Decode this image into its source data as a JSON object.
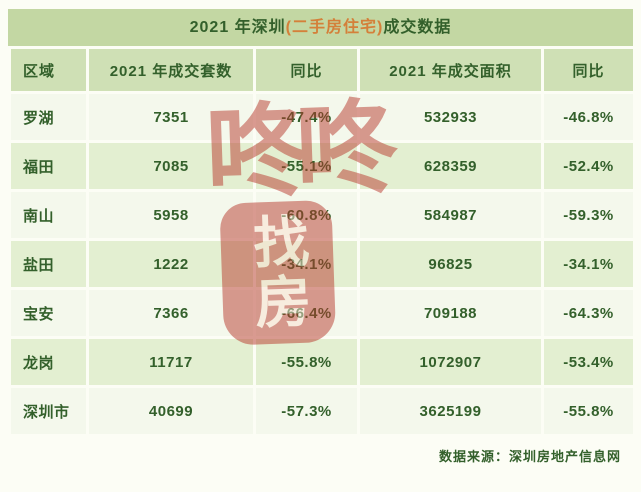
{
  "title": {
    "prefix": "2021 年深圳",
    "highlight": "(二手房住宅)",
    "suffix": "成交数据"
  },
  "chart_data": {
    "type": "table",
    "title": "2021 年深圳(二手房住宅)成交数据",
    "columns": [
      "区域",
      "2021 年成交套数",
      "同比",
      "2021 年成交面积",
      "同比"
    ],
    "rows": [
      [
        "罗湖",
        7351,
        "-47.4%",
        532933,
        "-46.8%"
      ],
      [
        "福田",
        7085,
        "-55.1%",
        628359,
        "-52.4%"
      ],
      [
        "南山",
        5958,
        "-60.8%",
        584987,
        "-59.3%"
      ],
      [
        "盐田",
        1222,
        "-34.1%",
        96825,
        "-34.1%"
      ],
      [
        "宝安",
        7366,
        "-66.4%",
        709188,
        "-64.3%"
      ],
      [
        "龙岗",
        11717,
        "-55.8%",
        1072907,
        "-53.4%"
      ],
      [
        "深圳市",
        40699,
        "-57.3%",
        3625199,
        "-55.8%"
      ]
    ]
  },
  "watermark": {
    "line1": "咚咚",
    "line2": "找房"
  },
  "footer": {
    "source": "数据来源：深圳房地产信息网"
  },
  "colors": {
    "title_bg": "#c3d7a3",
    "header_bg": "#cfe0b5",
    "row_light": "#f4f8ec",
    "row_dark": "#e3efd1",
    "text": "#33602b",
    "highlight": "#d4803a",
    "watermark": "#b83a2e"
  }
}
